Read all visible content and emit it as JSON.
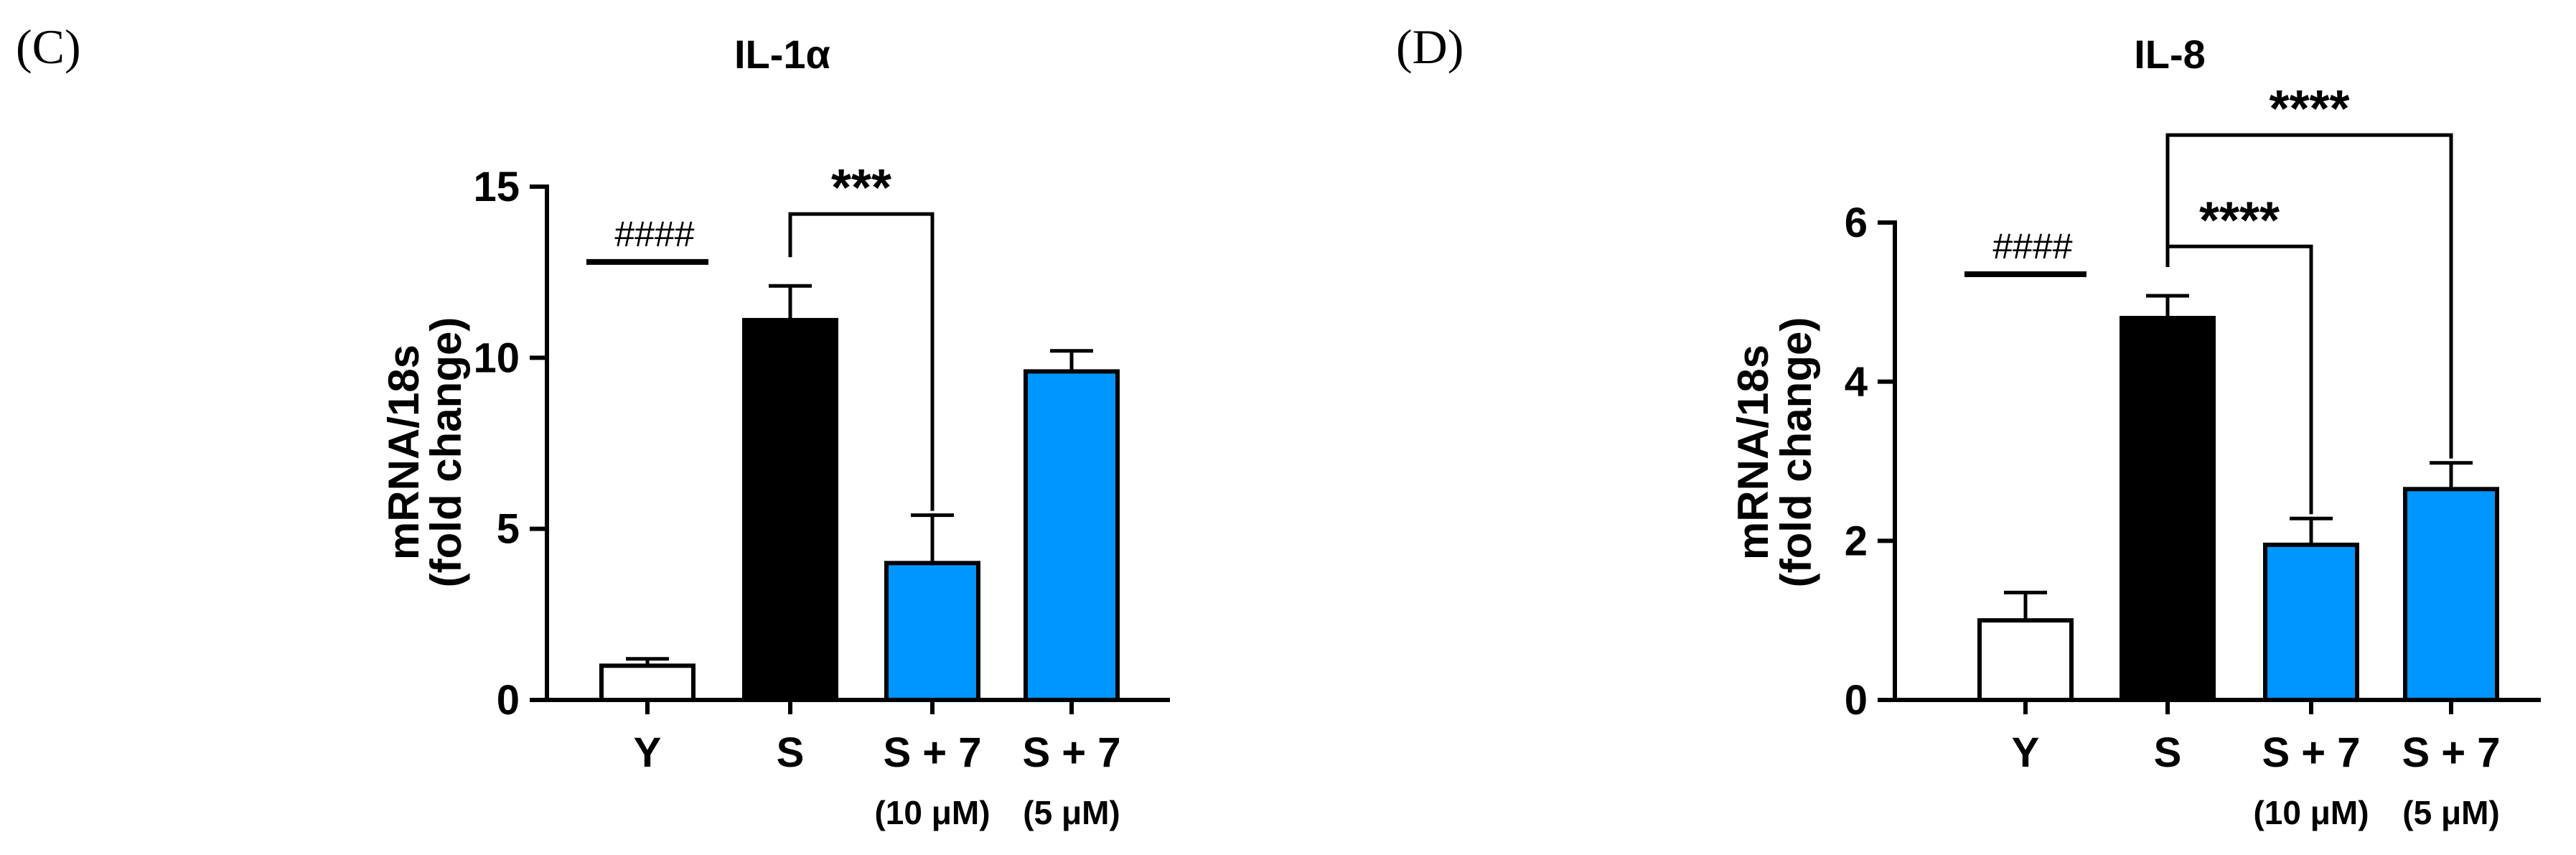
{
  "chart_data": [
    {
      "panel": "(C)",
      "type": "bar",
      "title": "IL-1α",
      "ylabel_line1": "mRNA/18s",
      "ylabel_line2": "(fold change)",
      "ylim": [
        0,
        15
      ],
      "yticks": [
        "0",
        "5",
        "10",
        "15"
      ],
      "ytick_values": [
        0,
        5,
        10,
        15
      ],
      "categories": [
        "Y",
        "S",
        "S + 7",
        "S + 7"
      ],
      "sublabels": [
        "",
        "",
        "(10 μM)",
        "(5 μM)"
      ],
      "values": [
        1.0,
        11.1,
        4.0,
        9.6
      ],
      "errors": [
        0.2,
        1.0,
        1.4,
        0.6
      ],
      "fill_colors": [
        "#ffffff",
        "#000000",
        "#0096ff",
        "#0096ff"
      ],
      "annotations": [
        {
          "type": "hash-line",
          "label": "####",
          "over": [
            0
          ],
          "y": 12.8
        },
        {
          "type": "bracket",
          "label": "***",
          "from": 1,
          "to": 2,
          "y": 14.2
        }
      ]
    },
    {
      "panel": "(D)",
      "type": "bar",
      "title": "IL-8",
      "ylabel_line1": "mRNA/18s",
      "ylabel_line2": "(fold change)",
      "ylim": [
        0,
        6
      ],
      "yticks": [
        "0",
        "2",
        "4",
        "6"
      ],
      "ytick_values": [
        0,
        2,
        4,
        6
      ],
      "categories": [
        "Y",
        "S",
        "S + 7",
        "S + 7"
      ],
      "sublabels": [
        "",
        "",
        "(10 μM)",
        "(5 μM)"
      ],
      "values": [
        1.0,
        4.8,
        1.95,
        2.65
      ],
      "errors": [
        0.35,
        0.28,
        0.33,
        0.33
      ],
      "fill_colors": [
        "#ffffff",
        "#000000",
        "#0096ff",
        "#0096ff"
      ],
      "annotations": [
        {
          "type": "hash-line",
          "label": "####",
          "over": [
            0
          ],
          "y": 5.35
        },
        {
          "type": "bracket",
          "label": "****",
          "from": 1,
          "to": 2,
          "y": 5.7
        },
        {
          "type": "bracket",
          "label": "****",
          "from": 1,
          "to": 3,
          "y": 7.1
        }
      ]
    }
  ]
}
